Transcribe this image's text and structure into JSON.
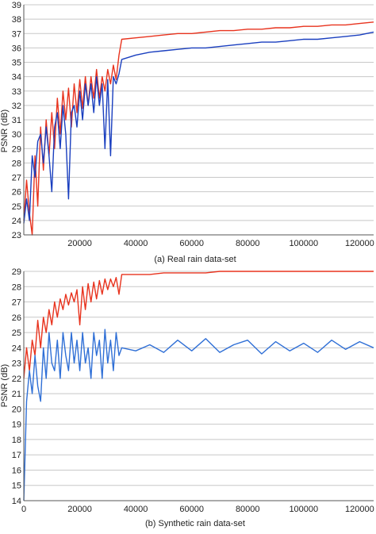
{
  "chart_data": [
    {
      "type": "line",
      "caption": "(a) Real rain data-set",
      "ylabel": "PSNR (dB)",
      "xlabel": "",
      "xlim": [
        0,
        125000
      ],
      "ylim": [
        23,
        39
      ],
      "x_ticks": [
        20000,
        40000,
        60000,
        80000,
        100000,
        120000
      ],
      "y_ticks": [
        23,
        24,
        25,
        26,
        27,
        28,
        29,
        30,
        31,
        32,
        33,
        34,
        35,
        36,
        37,
        38,
        39
      ],
      "grid": "horizontal",
      "legend": "none",
      "series": [
        {
          "color": "#e8331e",
          "x": [
            0,
            1000,
            2000,
            3000,
            4000,
            5000,
            6000,
            7000,
            8000,
            9000,
            10000,
            11000,
            12000,
            13000,
            14000,
            15000,
            16000,
            17000,
            18000,
            19000,
            20000,
            21000,
            22000,
            23000,
            24000,
            25000,
            26000,
            27000,
            28000,
            29000,
            30000,
            31000,
            32000,
            33000,
            34000,
            35000,
            40000,
            45000,
            50000,
            55000,
            60000,
            65000,
            70000,
            75000,
            80000,
            85000,
            90000,
            95000,
            100000,
            105000,
            110000,
            115000,
            120000,
            125000
          ],
          "values": [
            24.0,
            26.8,
            24.5,
            22.9,
            28.5,
            25.0,
            30.5,
            27.5,
            31.0,
            28.5,
            31.5,
            29.0,
            32.5,
            30.0,
            33.0,
            31.0,
            33.2,
            30.5,
            33.5,
            31.5,
            33.8,
            31.8,
            34.0,
            32.0,
            34.0,
            32.5,
            34.5,
            32.5,
            34.0,
            33.0,
            34.5,
            33.5,
            34.8,
            33.8,
            35.5,
            36.6,
            36.7,
            36.8,
            36.9,
            37.0,
            37.0,
            37.1,
            37.2,
            37.2,
            37.3,
            37.3,
            37.4,
            37.4,
            37.5,
            37.5,
            37.6,
            37.6,
            37.7,
            37.8
          ]
        },
        {
          "color": "#1a3fbf",
          "x": [
            0,
            1000,
            2000,
            3000,
            4000,
            5000,
            6000,
            7000,
            8000,
            9000,
            10000,
            11000,
            12000,
            13000,
            14000,
            15000,
            16000,
            17000,
            18000,
            19000,
            20000,
            21000,
            22000,
            23000,
            24000,
            25000,
            26000,
            27000,
            28000,
            29000,
            30000,
            31000,
            32000,
            33000,
            34000,
            35000,
            40000,
            45000,
            50000,
            55000,
            60000,
            65000,
            70000,
            75000,
            80000,
            85000,
            90000,
            95000,
            100000,
            105000,
            110000,
            115000,
            120000,
            125000
          ],
          "values": [
            23.8,
            25.5,
            24.0,
            28.5,
            27.0,
            29.5,
            30.0,
            28.0,
            30.5,
            28.5,
            26.0,
            30.5,
            31.5,
            29.0,
            32.0,
            30.0,
            25.5,
            31.5,
            32.0,
            30.5,
            33.0,
            31.0,
            33.5,
            32.0,
            33.5,
            31.5,
            34.0,
            32.0,
            33.5,
            29.0,
            33.8,
            28.5,
            34.0,
            33.5,
            34.2,
            35.2,
            35.5,
            35.7,
            35.8,
            35.9,
            36.0,
            36.0,
            36.1,
            36.2,
            36.3,
            36.4,
            36.4,
            36.5,
            36.6,
            36.6,
            36.7,
            36.8,
            36.9,
            37.1
          ]
        }
      ]
    },
    {
      "type": "line",
      "caption": "(b) Synthetic rain data-set",
      "ylabel": "PSNR (dB)",
      "xlabel": "",
      "xlim": [
        0,
        125000
      ],
      "ylim": [
        14,
        29
      ],
      "x_ticks": [
        0,
        20000,
        40000,
        60000,
        80000,
        100000,
        120000
      ],
      "y_ticks": [
        14,
        15,
        16,
        17,
        18,
        19,
        20,
        21,
        22,
        23,
        24,
        25,
        26,
        27,
        28,
        29
      ],
      "grid": "horizontal",
      "legend": "none",
      "series": [
        {
          "color": "#e8331e",
          "x": [
            0,
            1000,
            2000,
            3000,
            4000,
            5000,
            6000,
            7000,
            8000,
            9000,
            10000,
            11000,
            12000,
            13000,
            14000,
            15000,
            16000,
            17000,
            18000,
            19000,
            20000,
            21000,
            22000,
            23000,
            24000,
            25000,
            26000,
            27000,
            28000,
            29000,
            30000,
            31000,
            32000,
            33000,
            34000,
            35000,
            40000,
            45000,
            50000,
            55000,
            60000,
            65000,
            70000,
            75000,
            80000,
            85000,
            90000,
            95000,
            100000,
            105000,
            110000,
            115000,
            120000,
            125000
          ],
          "values": [
            22.0,
            24.0,
            22.5,
            24.5,
            23.5,
            25.8,
            24.0,
            26.0,
            25.0,
            26.5,
            25.5,
            27.0,
            26.0,
            27.2,
            26.5,
            27.5,
            26.8,
            27.6,
            27.0,
            27.8,
            25.5,
            28.0,
            26.5,
            28.2,
            27.0,
            28.3,
            27.2,
            28.4,
            27.5,
            28.5,
            27.8,
            28.5,
            28.0,
            28.6,
            27.5,
            28.8,
            28.8,
            28.8,
            28.9,
            28.9,
            28.9,
            28.9,
            29.0,
            29.0,
            29.0,
            29.0,
            29.0,
            29.0,
            29.0,
            29.0,
            29.1,
            29.1,
            29.1,
            29.1
          ]
        },
        {
          "color": "#2f6fd6",
          "x": [
            0,
            1000,
            2000,
            3000,
            4000,
            5000,
            6000,
            7000,
            8000,
            9000,
            10000,
            11000,
            12000,
            13000,
            14000,
            15000,
            16000,
            17000,
            18000,
            19000,
            20000,
            21000,
            22000,
            23000,
            24000,
            25000,
            26000,
            27000,
            28000,
            29000,
            30000,
            31000,
            32000,
            33000,
            34000,
            35000,
            40000,
            45000,
            50000,
            55000,
            60000,
            65000,
            70000,
            75000,
            80000,
            85000,
            90000,
            95000,
            100000,
            105000,
            110000,
            115000,
            120000,
            125000
          ],
          "values": [
            14.0,
            20.5,
            22.5,
            21.0,
            23.5,
            21.5,
            20.5,
            24.0,
            22.0,
            25.0,
            23.0,
            22.5,
            24.5,
            22.0,
            25.0,
            23.5,
            22.5,
            25.0,
            23.0,
            24.5,
            22.5,
            25.0,
            23.0,
            24.0,
            22.0,
            25.0,
            23.5,
            24.5,
            22.0,
            25.2,
            23.0,
            24.5,
            22.5,
            25.0,
            23.5,
            24.0,
            23.8,
            24.2,
            23.7,
            24.5,
            23.8,
            24.6,
            23.7,
            24.2,
            24.5,
            23.6,
            24.4,
            23.8,
            24.3,
            23.7,
            24.5,
            23.9,
            24.4,
            24.0
          ]
        }
      ]
    }
  ]
}
